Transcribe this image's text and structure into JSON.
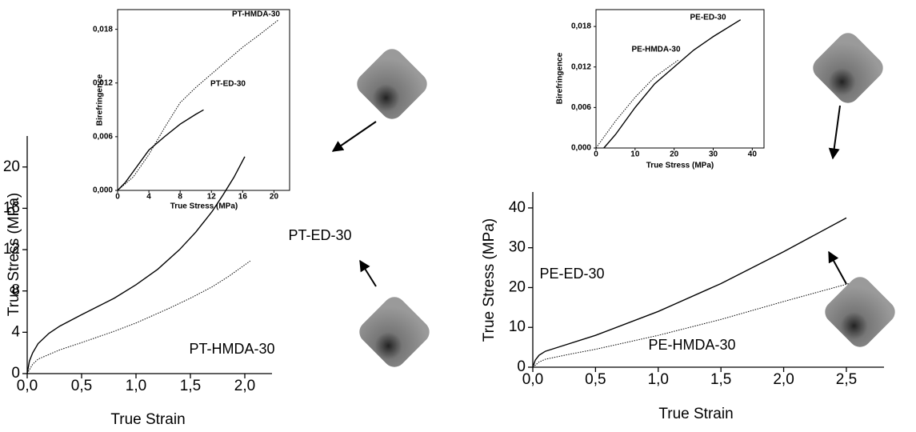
{
  "chart_data": [
    {
      "type": "line",
      "xlabel": "True Strain",
      "ylabel": "True Stress (MPa)",
      "xlim": [
        0,
        2.25
      ],
      "ylim": [
        0,
        23
      ],
      "xticks": [
        {
          "value": 0,
          "label": "0,0"
        },
        {
          "value": 0.5,
          "label": "0,5"
        },
        {
          "value": 1.0,
          "label": "1,0"
        },
        {
          "value": 1.5,
          "label": "1,5"
        },
        {
          "value": 2.0,
          "label": "2,0"
        }
      ],
      "yticks": [
        0,
        4,
        8,
        12,
        16,
        20
      ],
      "series": [
        {
          "name": "PT-ED-30",
          "color": "#000000",
          "style": "solid",
          "x": [
            0,
            0.02,
            0.05,
            0.1,
            0.2,
            0.3,
            0.5,
            0.8,
            1.0,
            1.2,
            1.4,
            1.55,
            1.7,
            1.8,
            1.9,
            2.0
          ],
          "values": [
            0,
            1.2,
            2.0,
            2.9,
            3.9,
            4.6,
            5.7,
            7.3,
            8.6,
            10.1,
            12.0,
            13.7,
            15.7,
            17.3,
            19.0,
            21.0
          ]
        },
        {
          "name": "PT-HMDA-30",
          "color": "#000000",
          "style": "dotted",
          "x": [
            0,
            0.05,
            0.1,
            0.3,
            0.5,
            0.8,
            1.0,
            1.3,
            1.5,
            1.7,
            1.85,
            2.05
          ],
          "values": [
            0,
            0.9,
            1.4,
            2.3,
            3.0,
            4.1,
            4.9,
            6.3,
            7.3,
            8.4,
            9.4,
            10.9
          ]
        }
      ]
    },
    {
      "type": "line",
      "xlabel": "True Stress (MPa)",
      "ylabel": "Birefringence",
      "xlim": [
        0,
        22
      ],
      "ylim": [
        0,
        0.0202
      ],
      "xticks": [
        0,
        4,
        8,
        12,
        16,
        20
      ],
      "yticks": [
        {
          "value": 0,
          "label": "0,000"
        },
        {
          "value": 0.006,
          "label": "0,006"
        },
        {
          "value": 0.012,
          "label": "0,012"
        },
        {
          "value": 0.018,
          "label": "0,018"
        }
      ],
      "series": [
        {
          "name": "PT-HMDA-30",
          "color": "#000000",
          "style": "dotted",
          "x": [
            0,
            2,
            4,
            6,
            8,
            10,
            12,
            14,
            16,
            18,
            20.5
          ],
          "values": [
            0,
            0.0015,
            0.004,
            0.007,
            0.0098,
            0.0115,
            0.013,
            0.0145,
            0.016,
            0.0173,
            0.019
          ]
        },
        {
          "name": "PT-ED-30",
          "color": "#000000",
          "style": "solid",
          "x": [
            0,
            1,
            2,
            4,
            6,
            8,
            10,
            11
          ],
          "values": [
            0,
            0.0009,
            0.0021,
            0.0045,
            0.006,
            0.0074,
            0.0085,
            0.009
          ]
        }
      ]
    },
    {
      "type": "line",
      "xlabel": "True Strain",
      "ylabel": "True Stress (MPa)",
      "xlim": [
        0,
        2.8
      ],
      "ylim": [
        0,
        44
      ],
      "xticks": [
        {
          "value": 0,
          "label": "0,0"
        },
        {
          "value": 0.5,
          "label": "0,5"
        },
        {
          "value": 1.0,
          "label": "1,0"
        },
        {
          "value": 1.5,
          "label": "1,5"
        },
        {
          "value": 2.0,
          "label": "2,0"
        },
        {
          "value": 2.5,
          "label": "2,5"
        }
      ],
      "yticks": [
        0,
        10,
        20,
        30,
        40
      ],
      "series": [
        {
          "name": "PE-ED-30",
          "color": "#000000",
          "style": "solid",
          "x": [
            0,
            0.02,
            0.05,
            0.1,
            0.2,
            0.5,
            1.0,
            1.5,
            2.0,
            2.5
          ],
          "values": [
            0,
            1.8,
            3.0,
            4.0,
            5.0,
            8.0,
            14.0,
            21.0,
            29.0,
            37.5
          ]
        },
        {
          "name": "PE-HMDA-30",
          "color": "#000000",
          "style": "dotted",
          "x": [
            0,
            0.05,
            0.1,
            0.3,
            0.5,
            1.0,
            1.5,
            2.0,
            2.52
          ],
          "values": [
            0,
            1.3,
            2.0,
            3.3,
            4.5,
            8.0,
            12.0,
            16.5,
            21.0
          ]
        }
      ]
    },
    {
      "type": "line",
      "xlabel": "True Stress (MPa)",
      "ylabel": "Birefringence",
      "xlim": [
        0,
        43
      ],
      "ylim": [
        0,
        0.0205
      ],
      "xticks": [
        0,
        10,
        20,
        30,
        40
      ],
      "yticks": [
        {
          "value": 0,
          "label": "0,000"
        },
        {
          "value": 0.006,
          "label": "0,006"
        },
        {
          "value": 0.012,
          "label": "0,012"
        },
        {
          "value": 0.018,
          "label": "0,018"
        }
      ],
      "series": [
        {
          "name": "PE-ED-30",
          "color": "#000000",
          "style": "solid",
          "x": [
            2,
            5,
            10,
            15,
            20,
            25,
            30,
            37
          ],
          "values": [
            0,
            0.002,
            0.006,
            0.0095,
            0.012,
            0.0145,
            0.0165,
            0.019
          ]
        },
        {
          "name": "PE-HMDA-30",
          "color": "#000000",
          "style": "dotted",
          "x": [
            0,
            5,
            10,
            15,
            21
          ],
          "values": [
            0,
            0.004,
            0.0075,
            0.0105,
            0.013
          ]
        }
      ]
    }
  ]
}
